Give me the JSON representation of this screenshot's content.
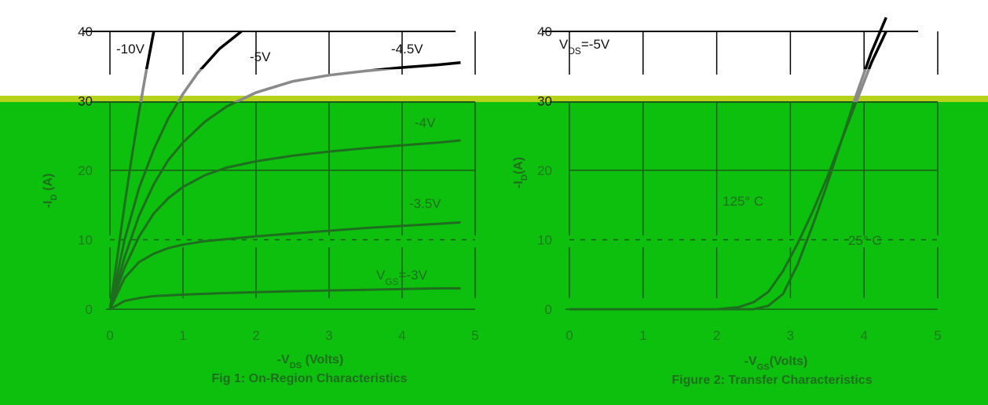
{
  "colors": {
    "band_white": "#ffffff",
    "band_strip": "#b7d21a",
    "band_green": "#0ec00e",
    "curve_top": "#000000",
    "curve_mid": "#8a8a8a",
    "curve_green": "#1f6e1f",
    "grid_green": "#1a5a1a"
  },
  "chart_data": [
    {
      "type": "line",
      "caption": "Fig 1: On-Region Characteristics",
      "xlabel": "-V_DS (Volts)",
      "ylabel": "-I_D (A)",
      "xlim": [
        0,
        5
      ],
      "ylim": [
        0,
        40
      ],
      "x_ticks": [
        "0",
        "1",
        "2",
        "3",
        "4",
        "5"
      ],
      "y_ticks": [
        "0",
        "10",
        "20",
        "30",
        "40"
      ],
      "grid": true,
      "series": [
        {
          "name": "-10V",
          "x": [
            0,
            0.1,
            0.2,
            0.3,
            0.4,
            0.5,
            0.6
          ],
          "y": [
            0,
            7.5,
            15,
            22,
            28.5,
            34.5,
            40
          ]
        },
        {
          "name": "-5V",
          "x": [
            0,
            0.2,
            0.4,
            0.6,
            0.8,
            1.0,
            1.2,
            1.5,
            1.8
          ],
          "y": [
            0,
            10,
            17.5,
            23,
            27.5,
            31,
            34,
            37.5,
            40
          ]
        },
        {
          "name": "-4.5V",
          "x": [
            0,
            0.2,
            0.4,
            0.6,
            0.8,
            1.0,
            1.3,
            1.6,
            2.0,
            2.5,
            3.0,
            3.5,
            4.0,
            4.5,
            4.8
          ],
          "y": [
            0,
            7.5,
            13.5,
            18,
            21.5,
            24,
            27,
            29.2,
            31.2,
            32.8,
            33.7,
            34.3,
            34.8,
            35.2,
            35.5
          ]
        },
        {
          "name": "-4V",
          "x": [
            0,
            0.2,
            0.4,
            0.6,
            0.8,
            1.0,
            1.3,
            1.6,
            2.0,
            2.5,
            3.0,
            3.5,
            4.0,
            4.5,
            4.8
          ],
          "y": [
            0,
            6,
            10.5,
            13.8,
            16,
            17.6,
            19.3,
            20.4,
            21.3,
            22.1,
            22.7,
            23.2,
            23.6,
            24,
            24.3
          ]
        },
        {
          "name": "-3.5V",
          "x": [
            0,
            0.2,
            0.4,
            0.6,
            0.8,
            1.0,
            1.3,
            1.6,
            2.0,
            2.5,
            3.0,
            3.5,
            4.0,
            4.5,
            4.8
          ],
          "y": [
            0,
            4.5,
            6.8,
            8,
            8.8,
            9.3,
            9.8,
            10.1,
            10.5,
            10.9,
            11.3,
            11.7,
            12,
            12.3,
            12.5
          ]
        },
        {
          "name": "V_GS=-3V",
          "x": [
            0,
            0.2,
            0.4,
            0.6,
            1.0,
            1.5,
            2.0,
            2.5,
            3.0,
            3.5,
            4.0,
            4.5,
            4.8
          ],
          "y": [
            0,
            1.2,
            1.6,
            1.9,
            2.1,
            2.3,
            2.45,
            2.6,
            2.7,
            2.8,
            2.9,
            3.0,
            3.0
          ]
        }
      ]
    },
    {
      "type": "line",
      "caption": "Figure 2: Transfer Characteristics",
      "xlabel": "-V_GS(Volts)",
      "ylabel": "-I_D(A)",
      "xlim": [
        0,
        5
      ],
      "ylim": [
        0,
        40
      ],
      "x_ticks": [
        "0",
        "1",
        "2",
        "3",
        "4",
        "5"
      ],
      "y_ticks": [
        "0",
        "10",
        "20",
        "30",
        "40"
      ],
      "grid": true,
      "annotation": "V_DS=-5V",
      "series": [
        {
          "name": "125° C",
          "x": [
            0,
            1.0,
            2.0,
            2.3,
            2.5,
            2.7,
            2.9,
            3.1,
            3.3,
            3.5,
            3.7,
            3.9,
            4.1,
            4.3
          ],
          "y": [
            0,
            0,
            0,
            0.3,
            1,
            2.5,
            5.5,
            9.5,
            14,
            19,
            24.5,
            30,
            35.5,
            40
          ]
        },
        {
          "name": "25° C",
          "x": [
            0,
            1.0,
            2.0,
            2.5,
            2.7,
            2.9,
            3.1,
            3.3,
            3.5,
            3.7,
            3.9,
            4.1,
            4.3
          ],
          "y": [
            0,
            0,
            0,
            0,
            0.5,
            2.2,
            6.5,
            12,
            18,
            24.5,
            31,
            37,
            42
          ]
        }
      ]
    }
  ]
}
